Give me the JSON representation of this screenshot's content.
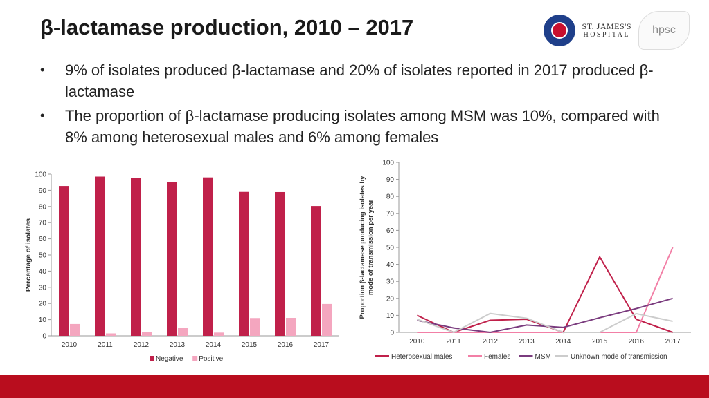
{
  "slide": {
    "title": "β-lactamase production, 2010 – 2017",
    "bullets": [
      "9% of isolates produced β-lactamase and 20% of isolates reported in 2017 produced β-lactamase",
      "The proportion of β-lactamase producing isolates among MSM was 10%, compared with 8% among heterosexual males and 6% among females"
    ]
  },
  "logos": {
    "stjames_line1": "ST. JAMES'S",
    "stjames_line2": "HOSPITAL",
    "hpsc": "hpsc"
  },
  "colors": {
    "negative": "#c0204a",
    "positive": "#f4a6bf",
    "heterosexual_males": "#c0204a",
    "females": "#f27fa6",
    "msm": "#7a3b7e",
    "unknown": "#cccccc",
    "bottom_bar": "#b90d1e"
  },
  "chart_data": [
    {
      "type": "bar",
      "categories": [
        "2010",
        "2011",
        "2012",
        "2013",
        "2014",
        "2015",
        "2016",
        "2017"
      ],
      "series": [
        {
          "name": "Negative",
          "values": [
            92.7,
            98.5,
            97.5,
            95.1,
            98,
            89,
            88.9,
            80.3
          ]
        },
        {
          "name": "Positive",
          "values": [
            7.3,
            1.5,
            2.5,
            4.9,
            2,
            11,
            11.1,
            19.7
          ]
        }
      ],
      "ylabel": "Percentage of isolates",
      "ylim": [
        0,
        100
      ],
      "yticks": [
        0,
        10,
        20,
        30,
        40,
        50,
        60,
        70,
        80,
        90,
        100
      ],
      "legend": "bottom",
      "grid": false
    },
    {
      "type": "line",
      "categories": [
        "2010",
        "2011",
        "2012",
        "2013",
        "2014",
        "2015",
        "2016",
        "2017"
      ],
      "series": [
        {
          "name": "Heterosexual males",
          "values": [
            10,
            0,
            7.1,
            7.7,
            0,
            44.4,
            7.7,
            0
          ]
        },
        {
          "name": "Females",
          "values": [
            0,
            0,
            0,
            0,
            0,
            0,
            0,
            50
          ]
        },
        {
          "name": "MSM",
          "values": [
            7.1,
            2.6,
            0,
            4.3,
            2.9,
            8.6,
            14,
            20
          ]
        },
        {
          "name": "Unknown mode of transmission",
          "values": [
            7.7,
            0,
            11.1,
            8.3,
            0,
            0,
            11,
            6.5
          ]
        }
      ],
      "ylabel": "Proportion β-lactamase producing isolates by mode of transmission per year",
      "ylim": [
        0,
        100
      ],
      "yticks": [
        0,
        10,
        20,
        30,
        40,
        50,
        60,
        70,
        80,
        90,
        100
      ],
      "legend": "bottom",
      "grid": false
    }
  ]
}
